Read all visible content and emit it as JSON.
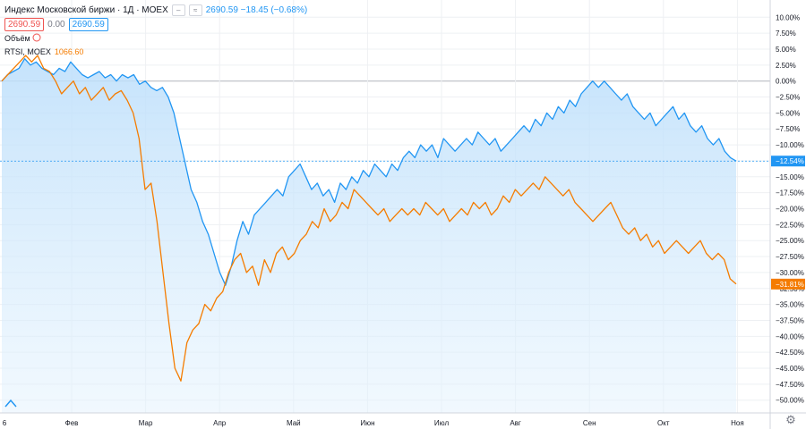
{
  "header": {
    "title": "Индекс Московской биржи · 1Д · MOEX",
    "change_text": "2690.59 −18.45 (−0.68%)",
    "sell_price": "2690.59",
    "spread": "0.00",
    "buy_price": "2690.59",
    "volume_label": "Объём",
    "compare_symbol": "RTSI, MOEX",
    "compare_value": "1066.60"
  },
  "colors": {
    "main": "#2196f3",
    "compare": "#f57c00",
    "area_top": "#bbdefb",
    "grid": "#eef0f3",
    "zero_line": "#b2b5be"
  },
  "chart_data": {
    "type": "line",
    "title": "Индекс Московской биржи · 1Д · MOEX",
    "x_ticks": [
      "6",
      "Фев",
      "Мар",
      "Апр",
      "Май",
      "Июн",
      "Июл",
      "Авг",
      "Сен",
      "Окт",
      "Ноя"
    ],
    "y_ticks": [
      "10.00%",
      "7.50%",
      "5.00%",
      "2.50%",
      "0.00%",
      "−2.50%",
      "−5.00%",
      "−7.50%",
      "−10.00%",
      "−12.50%",
      "−15.00%",
      "−17.50%",
      "−20.00%",
      "−22.50%",
      "−25.00%",
      "−27.50%",
      "−30.00%",
      "−32.50%",
      "−35.00%",
      "−37.50%",
      "−40.00%",
      "−42.50%",
      "−45.00%",
      "−47.50%",
      "−50.00%"
    ],
    "y_range": [
      -52,
      12
    ],
    "grid": true,
    "series": [
      {
        "name": "Индекс Московской биржи",
        "last_label": "−12.54%",
        "values": [
          0,
          1,
          1.5,
          2,
          3.5,
          2.5,
          3,
          2,
          1.5,
          1,
          2,
          1.5,
          3,
          2,
          1,
          0.5,
          1,
          1.5,
          0.5,
          1,
          0,
          1,
          0.5,
          1,
          -0.5,
          0,
          -1,
          -1.5,
          -1,
          -2.5,
          -5,
          -9,
          -13,
          -17,
          -19,
          -22,
          -24,
          -27,
          -30,
          -32,
          -29,
          -25,
          -22,
          -24,
          -21,
          -20,
          -19,
          -18,
          -17,
          -18,
          -15,
          -14,
          -13,
          -15,
          -17,
          -16,
          -18,
          -17,
          -19,
          -16,
          -17,
          -15,
          -16,
          -14,
          -15,
          -13,
          -14,
          -15,
          -13,
          -14,
          -12,
          -11,
          -12,
          -10,
          -11,
          -10,
          -12,
          -9,
          -10,
          -11,
          -10,
          -9,
          -10,
          -8,
          -9,
          -10,
          -9,
          -11,
          -10,
          -9,
          -8,
          -7,
          -8,
          -6,
          -7,
          -5,
          -6,
          -4,
          -5,
          -3,
          -4,
          -2,
          -1,
          0,
          -1,
          0,
          -1,
          -2,
          -3,
          -2,
          -4,
          -5,
          -6,
          -5,
          -7,
          -6,
          -5,
          -4,
          -6,
          -5,
          -7,
          -8,
          -7,
          -9,
          -10,
          -9,
          -11,
          -12,
          -12.54
        ]
      },
      {
        "name": "RTSI, MOEX",
        "last_label": "−31.81%",
        "values": [
          0,
          1,
          2,
          3,
          4,
          3,
          4,
          2,
          1.5,
          0,
          -2,
          -1,
          0,
          -2,
          -1,
          -3,
          -2,
          -1,
          -3,
          -2,
          -1.5,
          -3,
          -5,
          -9,
          -17,
          -16,
          -22,
          -30,
          -38,
          -45,
          -47,
          -41,
          -39,
          -38,
          -35,
          -36,
          -34,
          -33,
          -30,
          -28,
          -27,
          -30,
          -29,
          -32,
          -28,
          -30,
          -27,
          -26,
          -28,
          -27,
          -25,
          -24,
          -22,
          -23,
          -20,
          -22,
          -21,
          -19,
          -20,
          -17,
          -18,
          -19,
          -20,
          -21,
          -20,
          -22,
          -21,
          -20,
          -21,
          -20,
          -21,
          -19,
          -20,
          -21,
          -20,
          -22,
          -21,
          -20,
          -21,
          -19,
          -20,
          -19,
          -21,
          -20,
          -18,
          -19,
          -17,
          -18,
          -17,
          -16,
          -17,
          -15,
          -16,
          -17,
          -18,
          -17,
          -19,
          -20,
          -21,
          -22,
          -21,
          -20,
          -19,
          -21,
          -23,
          -24,
          -23,
          -25,
          -24,
          -26,
          -25,
          -27,
          -26,
          -25,
          -26,
          -27,
          -26,
          -25,
          -27,
          -28,
          -27,
          -28,
          -31,
          -31.81
        ]
      }
    ]
  }
}
